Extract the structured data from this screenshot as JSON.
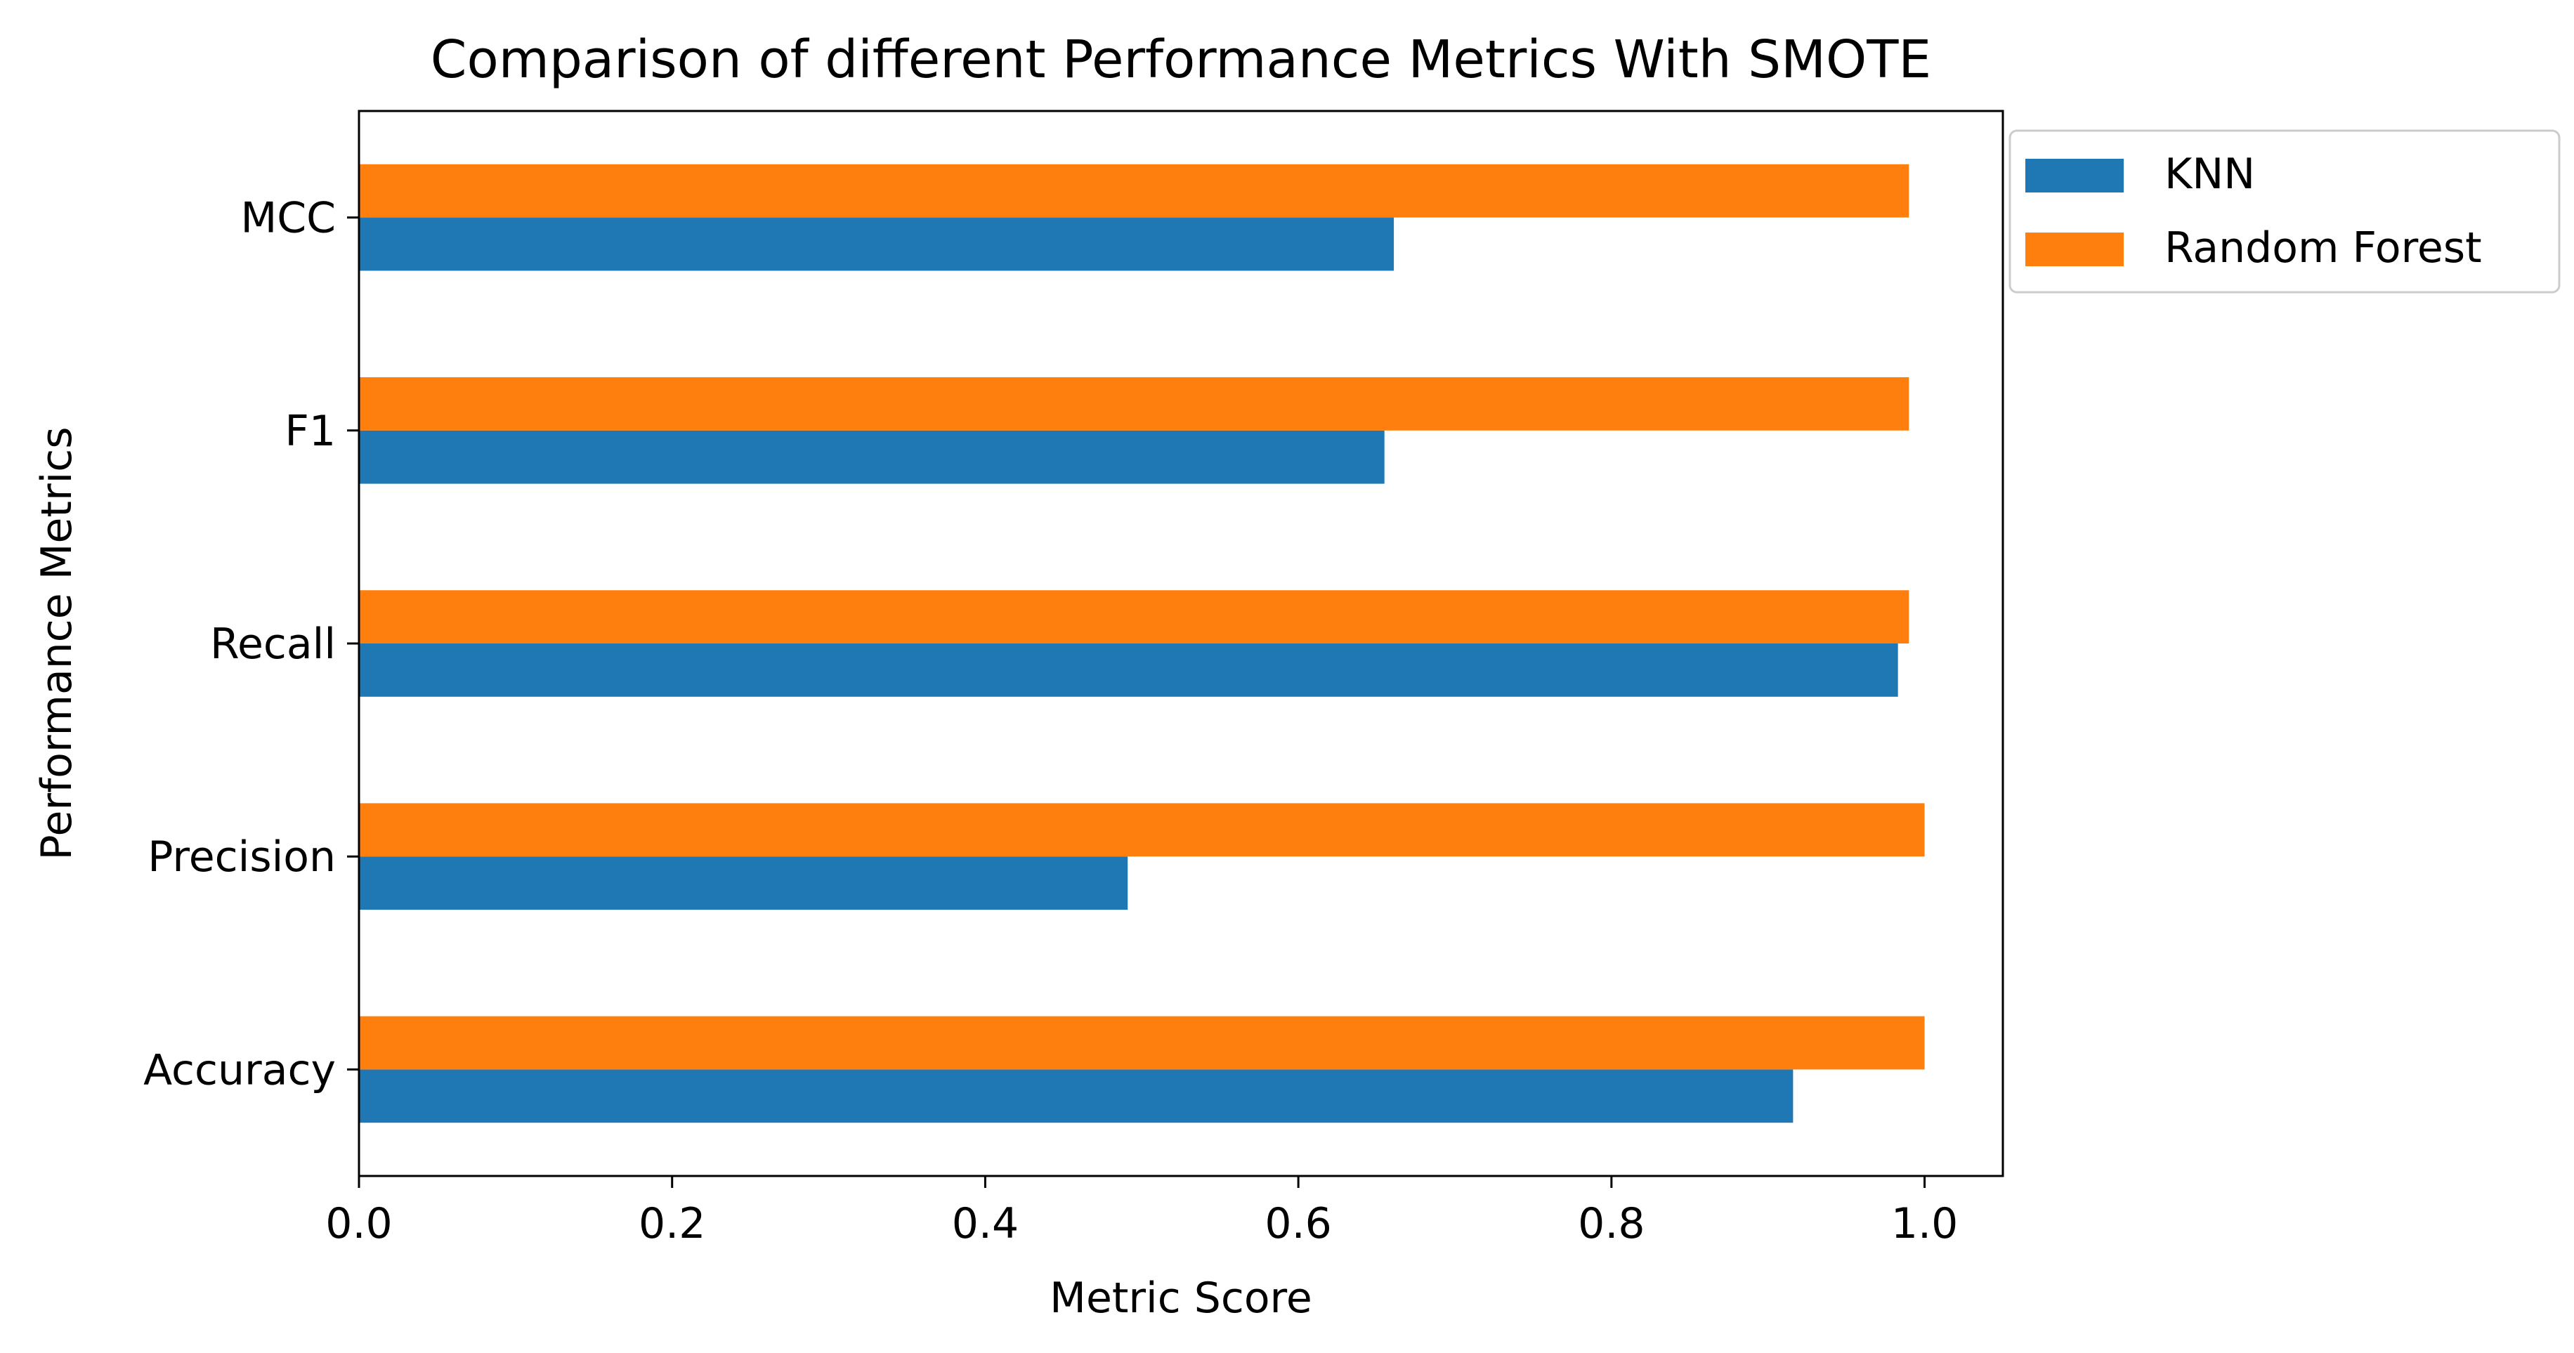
{
  "chart_data": {
    "type": "bar",
    "orientation": "horizontal",
    "title": "Comparison of different Performance Metrics With SMOTE",
    "xlabel": "Metric Score",
    "ylabel": "Performance Metrics",
    "categories": [
      "Accuracy",
      "Precision",
      "Recall",
      "F1",
      "MCC"
    ],
    "series": [
      {
        "name": "KNN",
        "color": "#1f77b4",
        "values": [
          0.916,
          0.491,
          0.983,
          0.655,
          0.661
        ]
      },
      {
        "name": "Random Forest",
        "color": "#ff7f0e",
        "values": [
          1.0,
          1.0,
          0.99,
          0.99,
          0.99
        ]
      }
    ],
    "xlim": [
      0,
      1.05
    ],
    "xticks": [
      "0.0",
      "0.2",
      "0.4",
      "0.6",
      "0.8",
      "1.0"
    ],
    "grid": false,
    "legend_position": "outside upper right"
  }
}
